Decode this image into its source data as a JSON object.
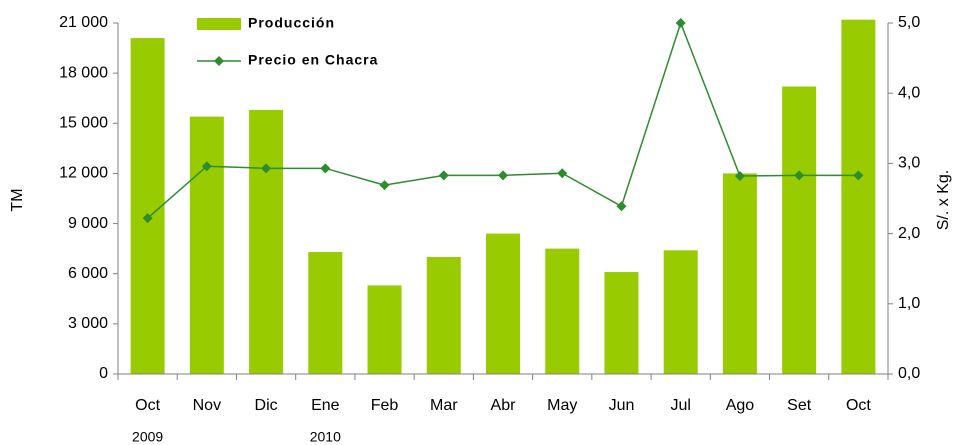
{
  "chart_data": {
    "type": "bar_line",
    "categories": [
      "Oct",
      "Nov",
      "Dic",
      "Ene",
      "Feb",
      "Mar",
      "Abr",
      "May",
      "Jun",
      "Jul",
      "Ago",
      "Set",
      "Oct"
    ],
    "category_groups": [
      "2009",
      null,
      null,
      "2010",
      null,
      null,
      null,
      null,
      null,
      null,
      null,
      null,
      null
    ],
    "ylabel": "TM",
    "y2label": "S/. x Kg.",
    "series": [
      {
        "name": "Producción",
        "type": "bar",
        "color": "#99cc00",
        "values": [
          20100,
          15400,
          15800,
          7300,
          5300,
          7000,
          8400,
          7500,
          6100,
          7400,
          12000,
          17200,
          21200
        ]
      },
      {
        "name": "Precio en Chacra",
        "type": "line",
        "axis": "y2",
        "color": "#2e8b2e",
        "values": [
          2.22,
          2.96,
          2.93,
          2.93,
          2.69,
          2.83,
          2.83,
          2.86,
          2.39,
          5.0,
          2.82,
          2.83,
          2.83
        ]
      }
    ],
    "ylim": [
      0,
      21000
    ],
    "yticks": [
      0,
      {
        "value": 3000,
        "label": "3 000"
      },
      {
        "value": 6000,
        "label": "6 000"
      },
      {
        "value": 9000,
        "label": "9 000"
      },
      {
        "value": 12000,
        "label": "12 000"
      },
      {
        "value": 15000,
        "label": "15 000"
      },
      {
        "value": 18000,
        "label": "18 000"
      },
      {
        "value": 21000,
        "label": "21 000"
      }
    ],
    "y2lim": [
      0,
      5
    ],
    "y2ticks": [
      {
        "value": 0,
        "label": "0,0"
      },
      {
        "value": 1,
        "label": "1,0"
      },
      {
        "value": 2,
        "label": "2,0"
      },
      {
        "value": 3,
        "label": "3,0"
      },
      {
        "value": 4,
        "label": "4,0"
      },
      {
        "value": 5,
        "label": "5,0"
      }
    ],
    "grid": false,
    "legend": "top-left"
  }
}
